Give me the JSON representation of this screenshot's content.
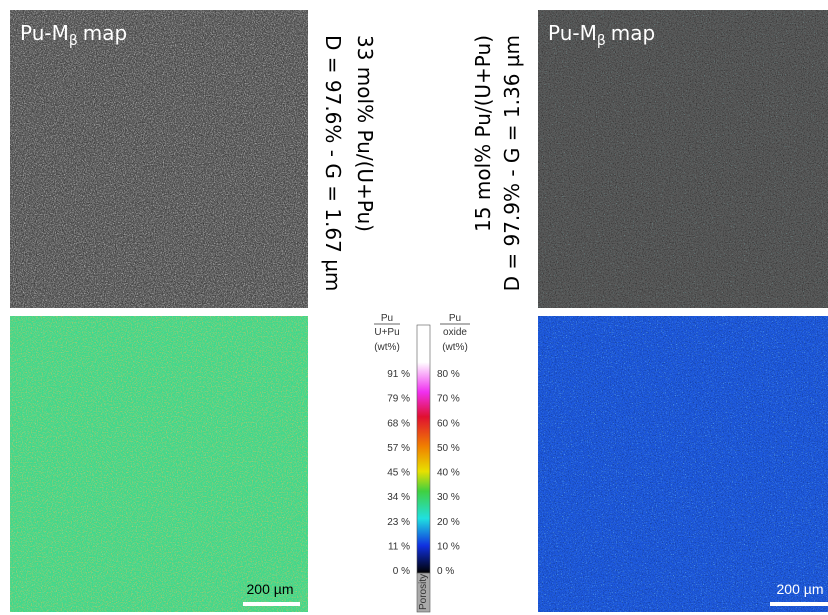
{
  "top_left_label": {
    "main": "Pu-M",
    "sub": "β",
    "suffix": "map"
  },
  "top_right_label": {
    "main": "Pu-M",
    "sub": "β",
    "suffix": "map"
  },
  "left_caption": {
    "line1": "33 mol% Pu/(U+Pu)",
    "line2": "D = 97.6% - G = 1.67 µm"
  },
  "right_caption": {
    "line1": "15 mol% Pu/(U+Pu)",
    "line2": "D = 97.9% - G = 1.36 µm"
  },
  "colorbar": {
    "left_header": {
      "numerator": "Pu",
      "denominator": "U+Pu",
      "unit": "(wt%)"
    },
    "right_header": {
      "numerator": "Pu",
      "denominator": "oxide",
      "unit": "(wt%)"
    },
    "left_labels": [
      "91 %",
      "79 %",
      "68 %",
      "57 %",
      "45 %",
      "34 %",
      "23 %",
      "11 %",
      "0 %"
    ],
    "right_labels": [
      "80 %",
      "70 %",
      "60 %",
      "50 %",
      "40 %",
      "30 %",
      "20 %",
      "10 %",
      "0 %"
    ],
    "porosity": "Porosity"
  },
  "scale_bars": [
    "200 µm",
    "200 µm"
  ]
}
